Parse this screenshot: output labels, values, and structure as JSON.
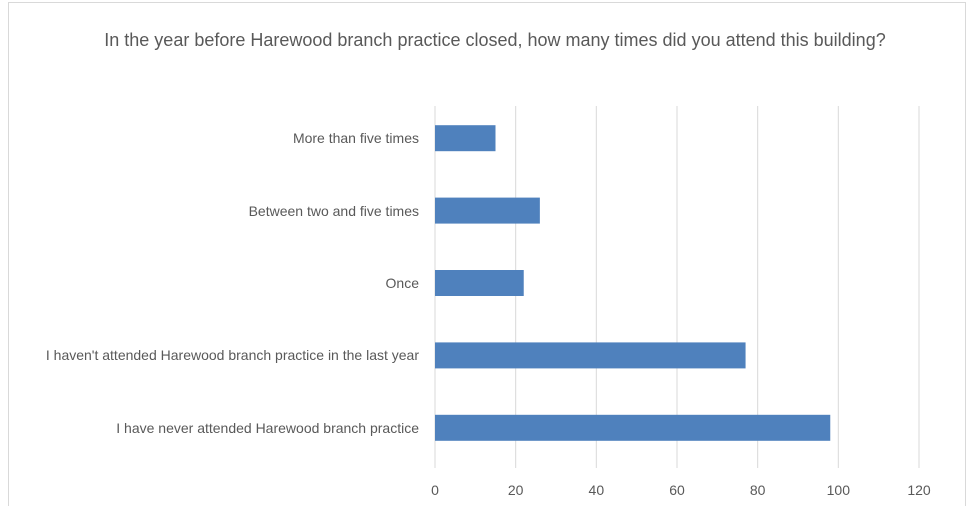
{
  "chart_data": {
    "type": "bar",
    "orientation": "horizontal",
    "title": "In the year before Harewood branch practice closed, how many times did you attend this building?",
    "categories": [
      "More than five times",
      "Between two and five times",
      "Once",
      "I haven't attended Harewood branch practice in the last year",
      "I have never attended Harewood branch practice"
    ],
    "values": [
      15,
      26,
      22,
      77,
      98
    ],
    "color": "#4f81bd",
    "xlim": [
      0,
      120
    ],
    "xticks": [
      0,
      20,
      40,
      60,
      80,
      100,
      120
    ],
    "grid": true
  }
}
